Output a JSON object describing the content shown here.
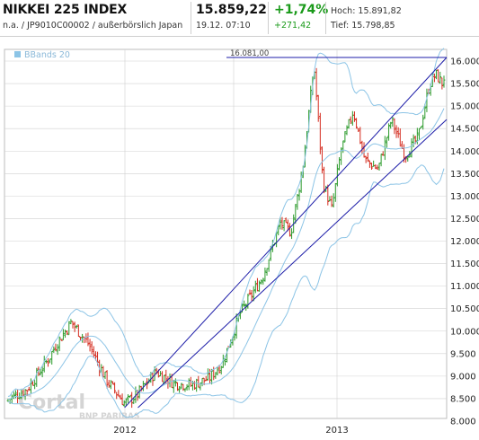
{
  "header": {
    "title": "NIKKEI 225 INDEX",
    "subtitle": "n.a. / JP9010C00002 / außerbörslich Japan",
    "price": "15.859,22",
    "time": "19.12. 07:10",
    "change_pct": "+1,74%",
    "change_abs": "+271,42",
    "high_label": "Hoch: 15.891,82",
    "low_label": "Tief: 15.798,85"
  },
  "legend": {
    "label": "BBands 20"
  },
  "annotation": {
    "label": "16.081,00"
  },
  "watermark": {
    "brand": "Cortal",
    "partner": "BNP PARIBAS"
  },
  "colors": {
    "up": "#2a9a2a",
    "down": "#d42b1e",
    "bbands": "#8cc4e6",
    "trend": "#1c1ca8",
    "grid": "#d0d0d0",
    "positive": "#1a9a1a"
  },
  "chart_data": {
    "type": "candlestick",
    "y_axis": {
      "min": 8000,
      "max": 16000,
      "step": 500,
      "position": "right",
      "tick_labels": [
        "16.000",
        "15.500",
        "15.000",
        "14.500",
        "14.000",
        "13.500",
        "13.000",
        "12.500",
        "12.000",
        "11.500",
        "11.000",
        "10.500",
        "10.000",
        "9.500",
        "9.000",
        "8.500",
        "8.000"
      ]
    },
    "x_axis": {
      "tick_labels": [
        "2012",
        "2013"
      ]
    },
    "grid": true,
    "price_path": [
      [
        0,
        8450
      ],
      [
        25,
        8700
      ],
      [
        50,
        9400
      ],
      [
        58,
        9700
      ],
      [
        75,
        10200
      ],
      [
        95,
        9700
      ],
      [
        115,
        8900
      ],
      [
        135,
        8400
      ],
      [
        150,
        8600
      ],
      [
        170,
        9100
      ],
      [
        190,
        8850
      ],
      [
        210,
        8800
      ],
      [
        230,
        8950
      ],
      [
        245,
        9300
      ],
      [
        265,
        10400
      ],
      [
        290,
        11200
      ],
      [
        310,
        12400
      ],
      [
        322,
        12200
      ],
      [
        335,
        13600
      ],
      [
        348,
        15900
      ],
      [
        358,
        13300
      ],
      [
        368,
        12700
      ],
      [
        378,
        14000
      ],
      [
        392,
        14900
      ],
      [
        405,
        13800
      ],
      [
        420,
        13600
      ],
      [
        435,
        14700
      ],
      [
        450,
        13900
      ],
      [
        465,
        14300
      ],
      [
        478,
        15500
      ],
      [
        485,
        15700
      ],
      [
        492,
        15500
      ],
      [
        497,
        15850
      ]
    ],
    "resistance": {
      "label": "16.081,00",
      "value": 16081
    },
    "trend_lines": [
      {
        "from": [
          135,
          8300
        ],
        "to": [
          497,
          16080
        ]
      },
      {
        "from": [
          150,
          8300
        ],
        "to": [
          497,
          14700
        ]
      }
    ],
    "bollinger": {
      "period": 20,
      "band_width": 600
    }
  }
}
